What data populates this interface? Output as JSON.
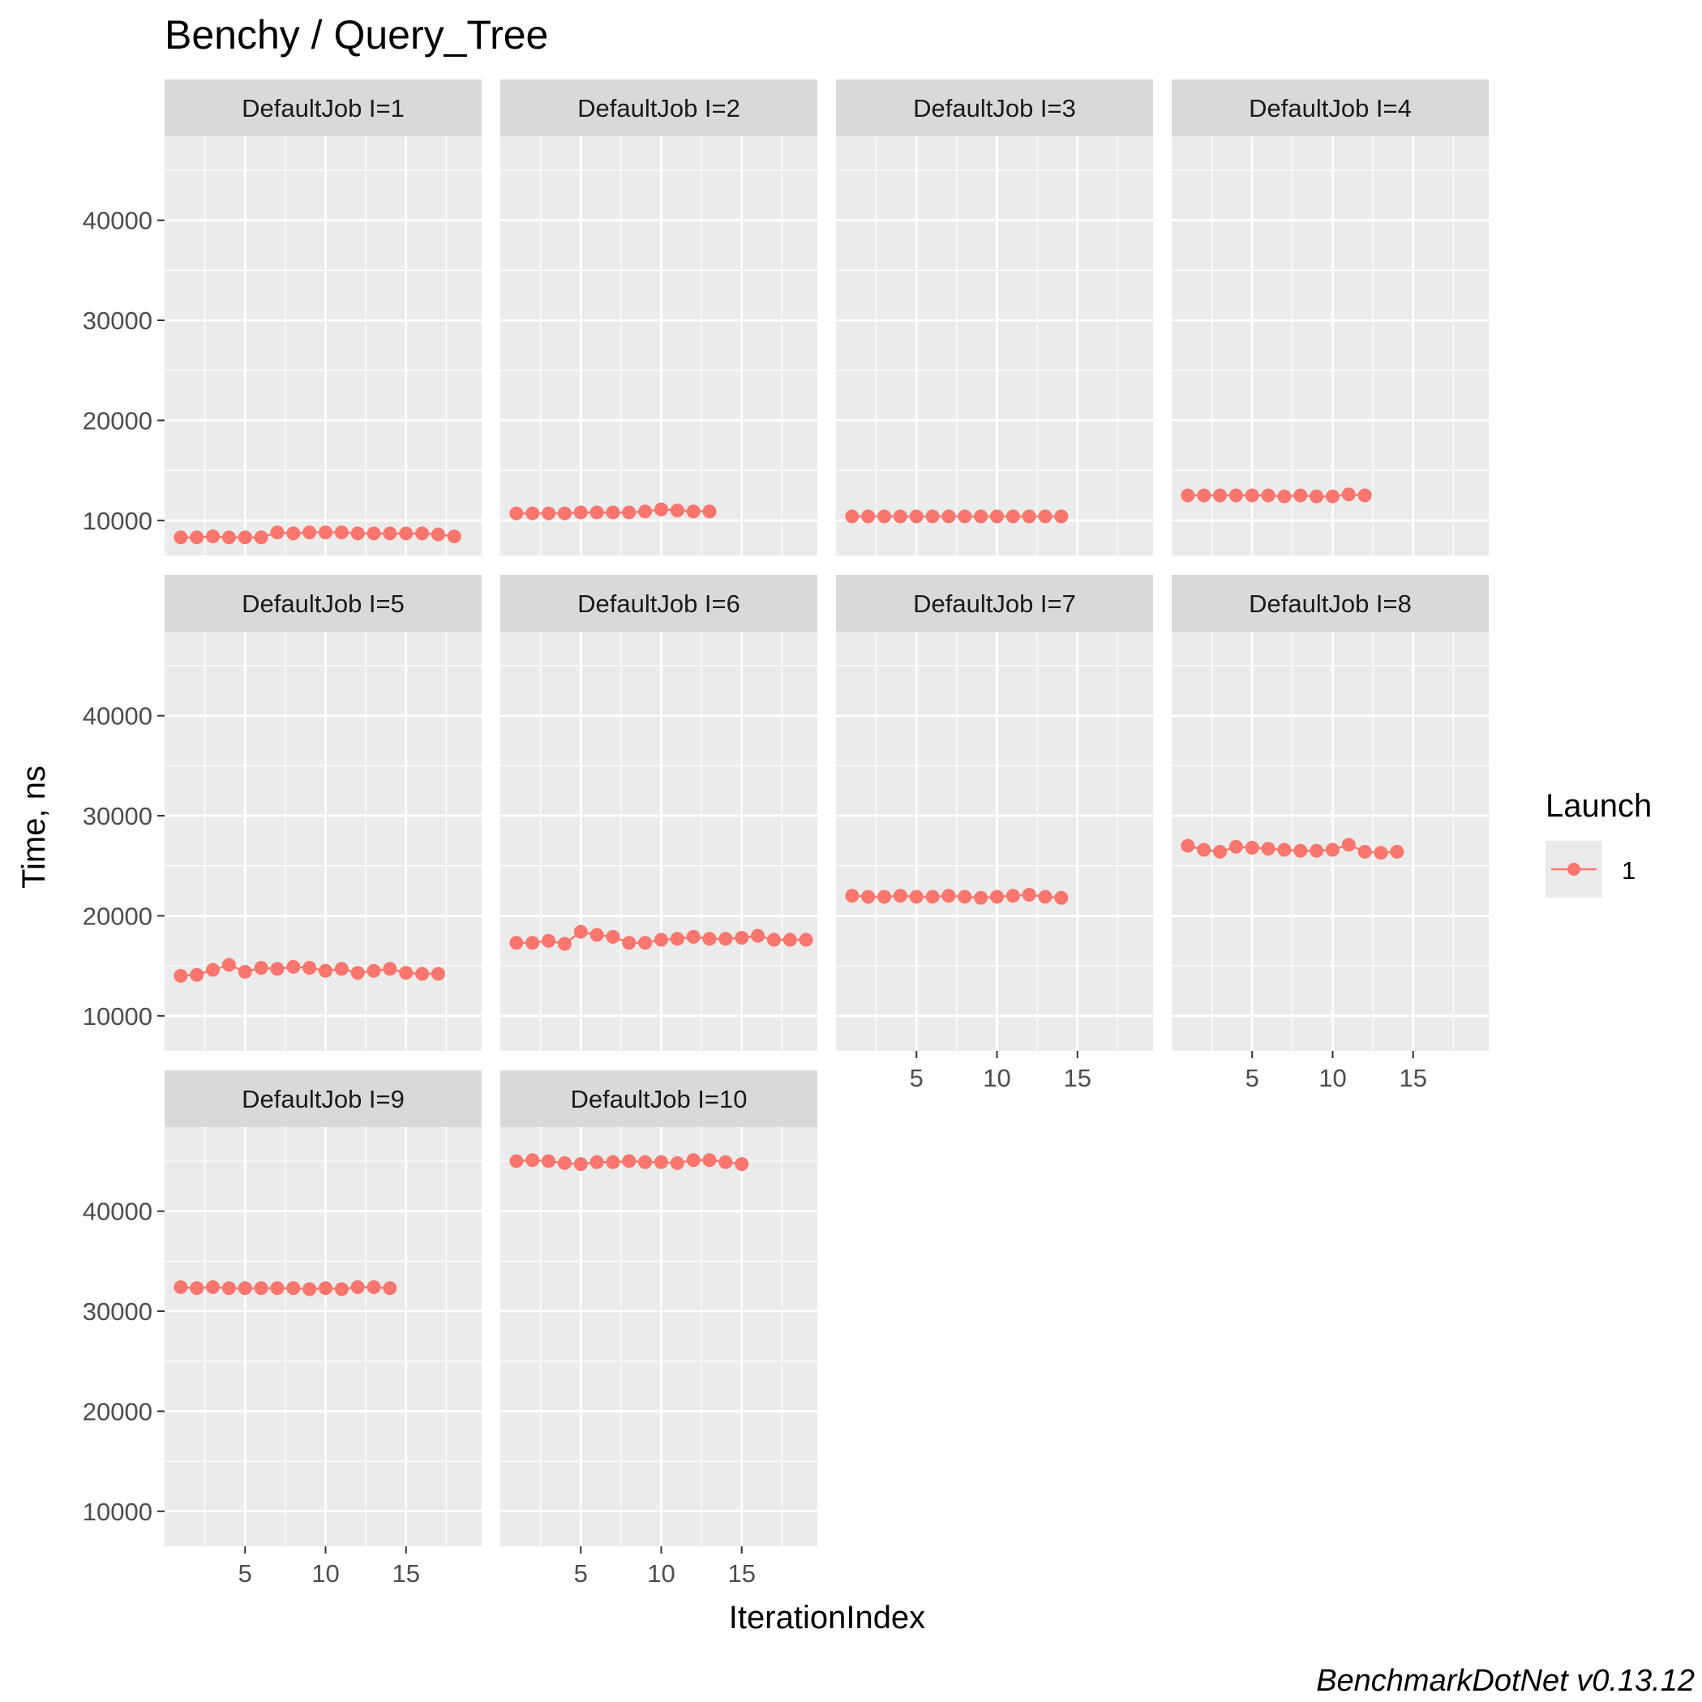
{
  "chart_data": {
    "type": "scatter",
    "title": "Benchy / Query_Tree",
    "xlabel": "IterationIndex",
    "ylabel": "Time, ns",
    "caption": "BenchmarkDotNet v0.13.12",
    "xlim": [
      0,
      19.7
    ],
    "ylim": [
      6500,
      48400
    ],
    "x_ticks": [
      5,
      10,
      15
    ],
    "y_ticks": [
      10000,
      20000,
      30000,
      40000
    ],
    "grid": true,
    "legend": {
      "title": "Launch",
      "entries": [
        "1"
      ],
      "placement": "right"
    },
    "colors": {
      "series": "#f8766d",
      "panel_bg": "#ebebeb",
      "strip_bg": "#d9d9d9",
      "grid": "#ffffff"
    },
    "panels": [
      {
        "label": "DefaultJob I=1",
        "series": [
          {
            "name": "1",
            "x": [
              1,
              2,
              3,
              4,
              5,
              6,
              7,
              8,
              9,
              10,
              11,
              12,
              13,
              14,
              15,
              16,
              17,
              18
            ],
            "y": [
              8300,
              8300,
              8400,
              8300,
              8300,
              8300,
              8800,
              8700,
              8800,
              8800,
              8800,
              8700,
              8700,
              8700,
              8700,
              8700,
              8600,
              8400
            ]
          }
        ]
      },
      {
        "label": "DefaultJob I=2",
        "series": [
          {
            "name": "1",
            "x": [
              1,
              2,
              3,
              4,
              5,
              6,
              7,
              8,
              9,
              10,
              11,
              12,
              13
            ],
            "y": [
              10700,
              10700,
              10700,
              10700,
              10800,
              10800,
              10800,
              10800,
              10900,
              11100,
              11000,
              10900,
              10900
            ]
          }
        ]
      },
      {
        "label": "DefaultJob I=3",
        "series": [
          {
            "name": "1",
            "x": [
              1,
              2,
              3,
              4,
              5,
              6,
              7,
              8,
              9,
              10,
              11,
              12,
              13,
              14
            ],
            "y": [
              10400,
              10400,
              10400,
              10400,
              10400,
              10400,
              10400,
              10400,
              10400,
              10400,
              10400,
              10400,
              10400,
              10400
            ]
          }
        ]
      },
      {
        "label": "DefaultJob I=4",
        "series": [
          {
            "name": "1",
            "x": [
              1,
              2,
              3,
              4,
              5,
              6,
              7,
              8,
              9,
              10,
              11,
              12
            ],
            "y": [
              12500,
              12500,
              12500,
              12500,
              12500,
              12500,
              12400,
              12500,
              12400,
              12400,
              12600,
              12500
            ]
          }
        ]
      },
      {
        "label": "DefaultJob I=5",
        "series": [
          {
            "name": "1",
            "x": [
              1,
              2,
              3,
              4,
              5,
              6,
              7,
              8,
              9,
              10,
              11,
              12,
              13,
              14,
              15,
              16,
              17
            ],
            "y": [
              14000,
              14100,
              14600,
              15100,
              14400,
              14800,
              14700,
              14900,
              14800,
              14500,
              14700,
              14300,
              14500,
              14700,
              14300,
              14200,
              14200
            ]
          }
        ]
      },
      {
        "label": "DefaultJob I=6",
        "series": [
          {
            "name": "1",
            "x": [
              1,
              2,
              3,
              4,
              5,
              6,
              7,
              8,
              9,
              10,
              11,
              12,
              13,
              14,
              15,
              16,
              17,
              18,
              19
            ],
            "y": [
              17300,
              17300,
              17500,
              17200,
              18400,
              18100,
              17900,
              17300,
              17300,
              17600,
              17700,
              17900,
              17700,
              17700,
              17800,
              18000,
              17600,
              17600,
              17600
            ]
          }
        ]
      },
      {
        "label": "DefaultJob I=7",
        "series": [
          {
            "name": "1",
            "x": [
              1,
              2,
              3,
              4,
              5,
              6,
              7,
              8,
              9,
              10,
              11,
              12,
              13,
              14
            ],
            "y": [
              22000,
              21900,
              21900,
              22000,
              21900,
              21900,
              22000,
              21900,
              21800,
              21900,
              22000,
              22100,
              21900,
              21800
            ]
          }
        ]
      },
      {
        "label": "DefaultJob I=8",
        "series": [
          {
            "name": "1",
            "x": [
              1,
              2,
              3,
              4,
              5,
              6,
              7,
              8,
              9,
              10,
              11,
              12,
              13,
              14
            ],
            "y": [
              27000,
              26600,
              26400,
              26900,
              26800,
              26700,
              26600,
              26500,
              26500,
              26600,
              27100,
              26400,
              26300,
              26400
            ]
          }
        ]
      },
      {
        "label": "DefaultJob I=9",
        "series": [
          {
            "name": "1",
            "x": [
              1,
              2,
              3,
              4,
              5,
              6,
              7,
              8,
              9,
              10,
              11,
              12,
              13,
              14
            ],
            "y": [
              32400,
              32300,
              32400,
              32300,
              32300,
              32300,
              32300,
              32300,
              32200,
              32300,
              32200,
              32400,
              32400,
              32300
            ]
          }
        ]
      },
      {
        "label": "DefaultJob I=10",
        "series": [
          {
            "name": "1",
            "x": [
              1,
              2,
              3,
              4,
              5,
              6,
              7,
              8,
              9,
              10,
              11,
              12,
              13,
              14,
              15
            ],
            "y": [
              45000,
              45100,
              45000,
              44800,
              44700,
              44900,
              44900,
              45000,
              44900,
              44900,
              44800,
              45100,
              45100,
              44900,
              44700
            ]
          }
        ]
      }
    ]
  }
}
